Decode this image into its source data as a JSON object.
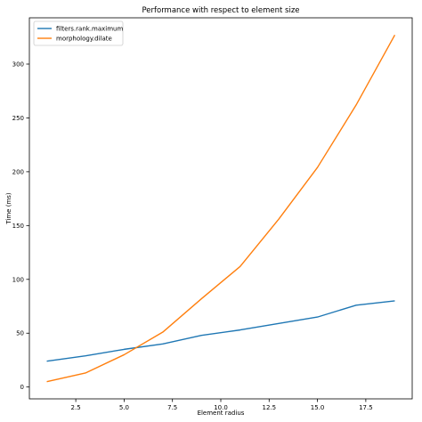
{
  "chart_data": {
    "type": "line",
    "title": "Performance with respect to element size",
    "xlabel": "Element radius",
    "ylabel": "Time (ms)",
    "xlim": [
      0.1,
      19.9
    ],
    "ylim": [
      -11,
      343
    ],
    "xticks": [
      2.5,
      5.0,
      7.5,
      10.0,
      12.5,
      15.0,
      17.5
    ],
    "xtick_labels": [
      "2.5",
      "5.0",
      "7.5",
      "10.0",
      "12.5",
      "15.0",
      "17.5"
    ],
    "yticks": [
      0,
      50,
      100,
      150,
      200,
      250,
      300
    ],
    "ytick_labels": [
      "0",
      "50",
      "100",
      "150",
      "200",
      "250",
      "300"
    ],
    "grid": false,
    "legend_position": "upper-left",
    "x": [
      1,
      3,
      5,
      7,
      9,
      11,
      13,
      15,
      17,
      19
    ],
    "series": [
      {
        "name": "filters.rank.maximum",
        "color": "#1f77b4",
        "values": [
          24,
          29,
          35,
          40,
          48,
          53,
          59,
          65,
          76,
          80
        ]
      },
      {
        "name": "morphology.dilate",
        "color": "#ff7f0e",
        "values": [
          5,
          13,
          30,
          51,
          82,
          112,
          156,
          204,
          262,
          327
        ]
      }
    ]
  }
}
